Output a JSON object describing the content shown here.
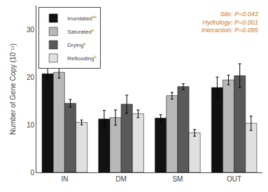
{
  "chart_data": {
    "type": "bar",
    "categories": [
      "IN",
      "DM",
      "SM",
      "OUT"
    ],
    "series": [
      {
        "name": "Inundated",
        "superscript": "ab",
        "color": "#111111",
        "values": [
          20.7,
          11.2,
          11.4,
          17.8
        ],
        "errors": [
          1.4,
          1.8,
          0.7,
          2.2
        ]
      },
      {
        "name": "Saturated",
        "superscript": "a",
        "color": "#b8b8b8",
        "values": [
          21.0,
          11.5,
          16.1,
          19.4
        ],
        "errors": [
          1.2,
          1.6,
          0.7,
          1.0
        ]
      },
      {
        "name": "Drying",
        "superscript": "a",
        "color": "#5a5a5a",
        "values": [
          14.5,
          14.3,
          18.0,
          20.3
        ],
        "errors": [
          0.8,
          1.9,
          0.6,
          2.5
        ]
      },
      {
        "name": "Reflooding",
        "superscript": "b",
        "color": "#e0e0e0",
        "values": [
          10.5,
          12.3,
          8.3,
          10.3
        ],
        "errors": [
          0.5,
          0.8,
          0.7,
          1.5
        ]
      }
    ],
    "ylabel": "Number of Gene Copy (10⁻¹¹)",
    "ylim": [
      0,
      35
    ],
    "yticks": [
      0,
      10,
      20,
      30
    ],
    "annotation": {
      "text": "Site: P=0.043\nHydrology: P=0.001\nInteraction: P=0.095",
      "color": "#cc7722"
    },
    "legend": "upper left",
    "grid": false
  }
}
